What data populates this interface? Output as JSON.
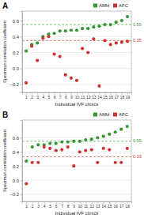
{
  "chart_data": [
    {
      "type": "scatter",
      "title": "A",
      "x": [
        1,
        2,
        3,
        4,
        5,
        6,
        7,
        8,
        9,
        10,
        11,
        12,
        13,
        14,
        15,
        16,
        17,
        18,
        19
      ],
      "series": [
        {
          "name": "AMH",
          "color": "#339933",
          "mean": 0.55,
          "values": [
            0.22,
            0.3,
            0.32,
            0.4,
            0.43,
            0.44,
            0.47,
            0.47,
            0.48,
            0.48,
            0.5,
            0.5,
            0.52,
            0.53,
            0.55,
            0.55,
            0.58,
            0.6,
            0.65
          ]
        },
        {
          "name": "AFC",
          "color": "#cc3333",
          "mean": 0.35,
          "values": [
            -0.18,
            0.28,
            0.1,
            0.38,
            0.4,
            0.18,
            0.15,
            -0.08,
            -0.12,
            -0.15,
            0.25,
            0.2,
            0.37,
            -0.22,
            0.35,
            0.3,
            0.32,
            0.33,
            0.34
          ]
        }
      ],
      "xlim": [
        0.3,
        19.7
      ],
      "xticks": [
        1,
        2,
        3,
        4,
        5,
        6,
        7,
        8,
        9,
        10,
        11,
        12,
        13,
        14,
        15,
        16,
        17,
        18,
        19
      ],
      "ylim": [
        -0.3,
        0.72
      ],
      "yticks": [
        {
          "value": -0.2,
          "label": "−0.2"
        },
        {
          "value": 0,
          "label": "0.0"
        },
        0.2,
        0.4,
        0.6
      ],
      "xlabel": "Individual IVF clinics",
      "ylabel": "Spearman correlation coefficient",
      "grid": true,
      "legend": "top-right"
    },
    {
      "type": "scatter",
      "title": "B",
      "x": [
        1,
        2,
        3,
        4,
        5,
        6,
        7,
        8,
        9,
        10,
        11,
        12,
        13,
        14,
        15,
        16,
        17,
        18
      ],
      "series": [
        {
          "name": "AMH",
          "color": "#339933",
          "mean": 0.55,
          "values": [
            0.27,
            0.47,
            0.5,
            0.5,
            0.52,
            0.52,
            0.54,
            0.54,
            0.55,
            0.55,
            0.57,
            0.58,
            0.6,
            0.62,
            0.65,
            0.68,
            0.72,
            0.76
          ]
        },
        {
          "name": "AFC",
          "color": "#cc3333",
          "mean": 0.33,
          "values": [
            -0.05,
            0.25,
            0.25,
            0.47,
            0.45,
            0.42,
            0.43,
            0.47,
            0.2,
            0.4,
            0.42,
            0.43,
            0.25,
            0.45,
            0.43,
            0.25,
            0.25,
            0.45
          ]
        }
      ],
      "xlim": [
        0.3,
        18.7
      ],
      "xticks": [
        1,
        2,
        3,
        4,
        5,
        6,
        7,
        8,
        9,
        10,
        11,
        12,
        13,
        14,
        15,
        16,
        17,
        18
      ],
      "ylim": [
        -0.3,
        0.85
      ],
      "yticks": [
        {
          "value": -0.2,
          "label": "−0.2"
        },
        {
          "value": 0,
          "label": "0.0"
        },
        0.2,
        0.4,
        0.6
      ],
      "xlabel": "Individual IVF clinics",
      "ylabel": "Spearman correlation coefficient",
      "grid": true,
      "legend": "top-right"
    }
  ]
}
